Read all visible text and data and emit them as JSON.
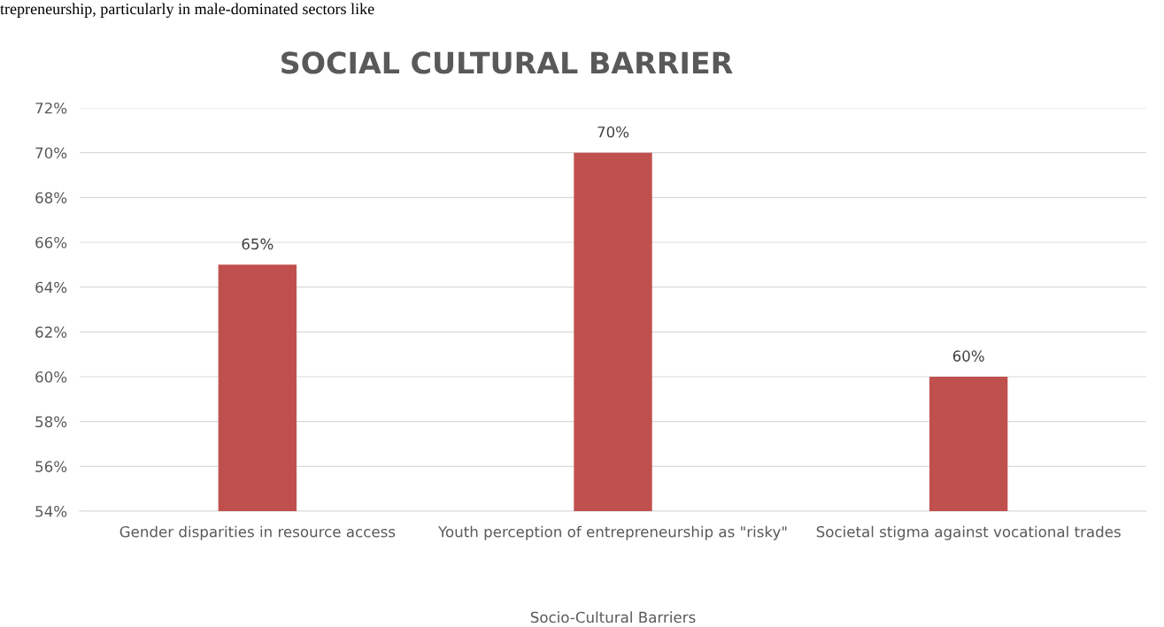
{
  "chart_data": {
    "type": "bar",
    "title": "SOCIAL CULTURAL BARRIER",
    "xlabel": "Socio-Cultural Barriers",
    "categories": [
      "Gender disparities in resource access",
      "Youth perception of entrepreneurship as \"risky\"",
      "Societal stigma against vocational trades"
    ],
    "values": [
      65,
      70,
      60
    ],
    "value_labels": [
      "65%",
      "70%",
      "60%"
    ],
    "color": "#c0504d",
    "ylim": [
      54,
      72
    ],
    "yticks": [
      {
        "value": 54,
        "label": "54%"
      },
      {
        "value": 56,
        "label": "56%"
      },
      {
        "value": 58,
        "label": "58%"
      },
      {
        "value": 60,
        "label": "60%"
      },
      {
        "value": 62,
        "label": "62%"
      },
      {
        "value": 64,
        "label": "64%"
      },
      {
        "value": 66,
        "label": "66%"
      },
      {
        "value": 68,
        "label": "68%"
      },
      {
        "value": 70,
        "label": "70%"
      },
      {
        "value": 72,
        "label": "72%"
      }
    ],
    "grid": "y",
    "annotations": [
      "trepreneurship, particularly in male-dominated sectors like"
    ]
  }
}
